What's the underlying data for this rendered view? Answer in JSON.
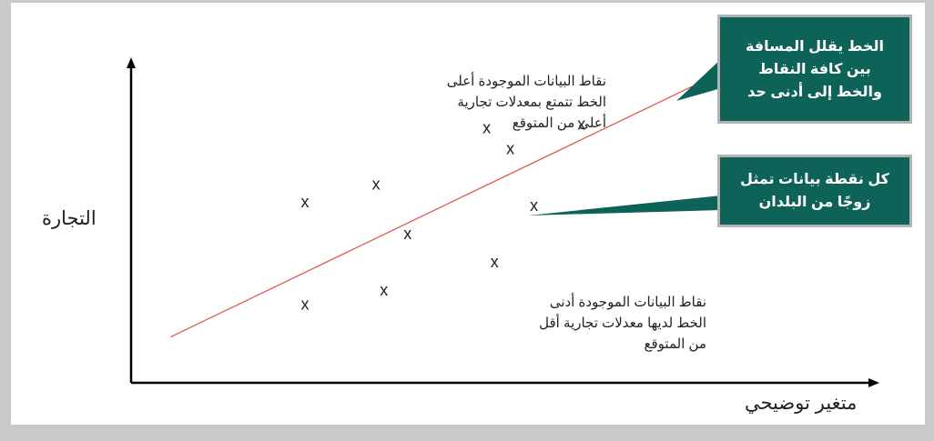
{
  "colors": {
    "callout_fill": "#0e6359",
    "callout_border": "#b3b3b3",
    "fit_line": "#e05a4e",
    "axis": "#000000",
    "text": "#222222",
    "background": "#c9c9c9"
  },
  "chart_data": {
    "type": "scatter",
    "title": "",
    "xlabel": "متغير توضيحي",
    "ylabel": "التجارة",
    "xlim": [
      0,
      100
    ],
    "ylim": [
      0,
      100
    ],
    "marker": "x",
    "points": [
      {
        "x": 22,
        "y": 51
      },
      {
        "x": 31,
        "y": 56
      },
      {
        "x": 35,
        "y": 42
      },
      {
        "x": 22,
        "y": 22
      },
      {
        "x": 32,
        "y": 26
      },
      {
        "x": 45,
        "y": 72
      },
      {
        "x": 48,
        "y": 66
      },
      {
        "x": 57,
        "y": 73
      },
      {
        "x": 51,
        "y": 50
      },
      {
        "x": 46,
        "y": 34
      }
    ],
    "fit_line": {
      "x": [
        5,
        71
      ],
      "y": [
        13,
        84
      ]
    }
  },
  "annotations": {
    "above_line": "نقاط البيانات الموجودة أعلى\nالخط تتمتع بمعدلات تجارية\nأعلى من المتوقع",
    "below_line": "نقاط البيانات الموجودة أدنى\nالخط لديها معدلات تجارية أقل\nمن المتوقع"
  },
  "callouts": {
    "line_callout": "الخط يقلل المسافة\nبين كافة النقاط\nوالخط إلى أدنى حد",
    "point_callout": "كل نقطة بيانات تمثل\nزوجًا من البلدان"
  }
}
